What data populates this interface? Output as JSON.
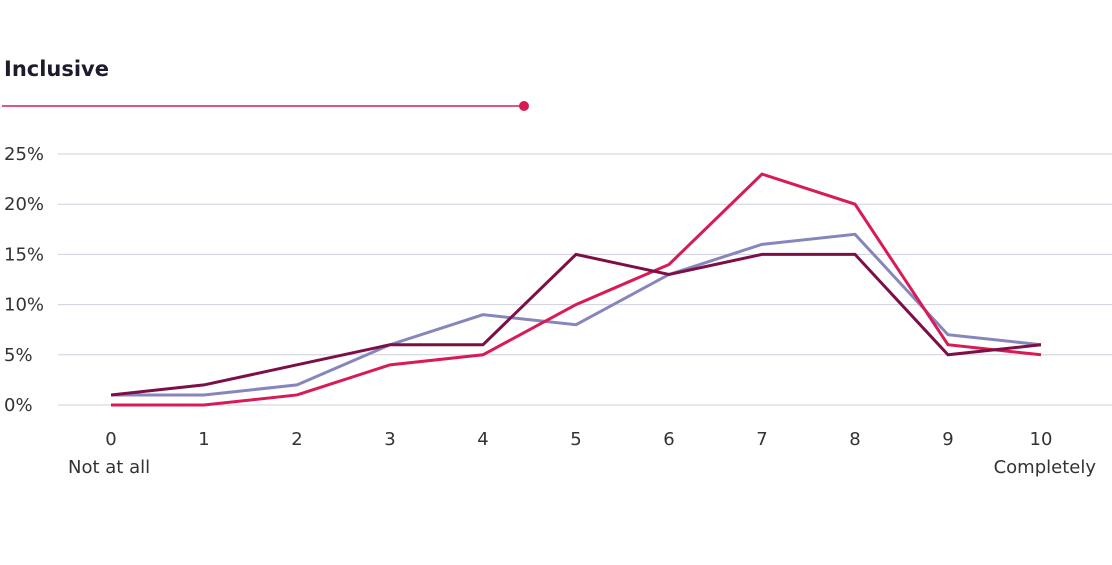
{
  "colors": {
    "accent": "#d81b55",
    "title": "#1f1b2d",
    "grid": "#cfd0dc"
  },
  "chart_data": {
    "type": "line",
    "title": "Inclusive",
    "x": [
      0,
      1,
      2,
      3,
      4,
      5,
      6,
      7,
      8,
      9,
      10
    ],
    "x_tick_labels": [
      "0",
      "1",
      "2",
      "3",
      "4",
      "5",
      "6",
      "7",
      "8",
      "9",
      "10"
    ],
    "x_endpoint_labels": {
      "start": "Not at all",
      "end": "Completely"
    },
    "ylim": [
      0,
      25
    ],
    "y_ticks": [
      0,
      5,
      10,
      15,
      20,
      25
    ],
    "y_tick_labels": [
      "0%",
      "5%",
      "10%",
      "15%",
      "20%",
      "25%"
    ],
    "grid": true,
    "legend": "none",
    "series": [
      {
        "color": "#8686bd",
        "values": [
          1,
          1,
          2,
          6,
          9,
          8,
          13,
          16,
          17,
          7,
          6
        ]
      },
      {
        "color": "#d81b55",
        "values": [
          0,
          0,
          1,
          4,
          5,
          10,
          14,
          23,
          20,
          6,
          5
        ]
      },
      {
        "color": "#7d0f47",
        "values": [
          1,
          2,
          4,
          6,
          6,
          15,
          13,
          15,
          15,
          5,
          6
        ]
      }
    ]
  }
}
